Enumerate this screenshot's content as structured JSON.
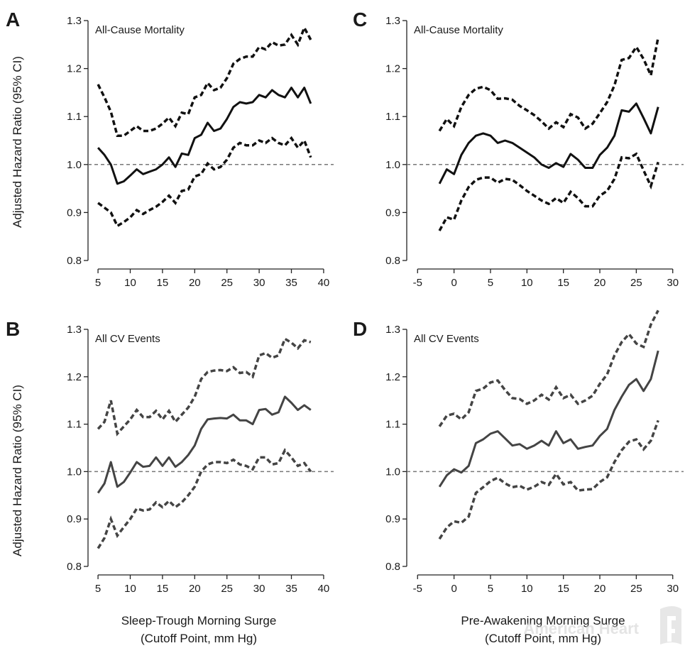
{
  "figure": {
    "ylabel": "Adjusted Hazard Ratio (95% CI)",
    "xlabel_left_line1": "Sleep-Trough Morning Surge",
    "xlabel_left_line2": "(Cutoff Point, mm Hg)",
    "xlabel_right_line1": "Pre-Awakening Morning Surge",
    "xlabel_right_line2": "(Cutoff Point, mm Hg)",
    "watermark": "American Heart"
  },
  "colors": {
    "panel_AC_line": "#111111",
    "panel_BD_line": "#444444",
    "reference_line": "#777777",
    "axis": "#222222"
  },
  "chart_data": [
    {
      "panel": "A",
      "type": "line",
      "title": "All-Cause Mortality",
      "xlabel": "",
      "ylabel": "Adjusted Hazard Ratio (95% CI)",
      "xlim": [
        4,
        41
      ],
      "ylim": [
        0.8,
        1.3
      ],
      "xticks": [
        5,
        10,
        15,
        20,
        25,
        30,
        35,
        40
      ],
      "yticks": [
        0.8,
        0.9,
        1.0,
        1.1,
        1.2,
        1.3
      ],
      "reference_y": 1.0,
      "x": [
        5,
        6,
        7,
        8,
        9,
        10,
        11,
        12,
        13,
        14,
        15,
        16,
        17,
        18,
        19,
        20,
        21,
        22,
        23,
        24,
        25,
        26,
        27,
        28,
        29,
        30,
        31,
        32,
        33,
        34,
        35,
        36,
        37,
        38
      ],
      "series": [
        {
          "role": "estimate",
          "values": [
            1.035,
            1.02,
            1.0,
            0.96,
            0.965,
            0.977,
            0.99,
            0.98,
            0.985,
            0.99,
            1.0,
            1.015,
            0.995,
            1.023,
            1.02,
            1.055,
            1.062,
            1.087,
            1.07,
            1.075,
            1.095,
            1.12,
            1.13,
            1.127,
            1.13,
            1.145,
            1.14,
            1.155,
            1.145,
            1.14,
            1.16,
            1.14,
            1.16,
            1.127
          ]
        },
        {
          "role": "upper_ci",
          "values": [
            1.167,
            1.14,
            1.11,
            1.06,
            1.06,
            1.07,
            1.08,
            1.07,
            1.07,
            1.075,
            1.085,
            1.098,
            1.08,
            1.108,
            1.105,
            1.14,
            1.145,
            1.17,
            1.155,
            1.16,
            1.18,
            1.21,
            1.22,
            1.225,
            1.225,
            1.245,
            1.24,
            1.255,
            1.248,
            1.25,
            1.27,
            1.25,
            1.285,
            1.26
          ]
        },
        {
          "role": "lower_ci",
          "values": [
            0.92,
            0.91,
            0.9,
            0.872,
            0.88,
            0.89,
            0.905,
            0.897,
            0.905,
            0.912,
            0.922,
            0.935,
            0.92,
            0.945,
            0.948,
            0.975,
            0.98,
            1.002,
            0.99,
            0.995,
            1.01,
            1.035,
            1.045,
            1.04,
            1.04,
            1.05,
            1.045,
            1.055,
            1.045,
            1.04,
            1.055,
            1.035,
            1.05,
            1.015
          ]
        }
      ]
    },
    {
      "panel": "B",
      "type": "line",
      "title": "All CV Events",
      "xlabel": "Sleep-Trough Morning Surge (Cutoff Point, mm Hg)",
      "ylabel": "Adjusted Hazard Ratio (95% CI)",
      "xlim": [
        4,
        41
      ],
      "ylim": [
        0.8,
        1.3
      ],
      "xticks": [
        5,
        10,
        15,
        20,
        25,
        30,
        35,
        40
      ],
      "yticks": [
        0.8,
        0.9,
        1.0,
        1.1,
        1.2,
        1.3
      ],
      "reference_y": 1.0,
      "x": [
        5,
        6,
        7,
        8,
        9,
        10,
        11,
        12,
        13,
        14,
        15,
        16,
        17,
        18,
        19,
        20,
        21,
        22,
        23,
        24,
        25,
        26,
        27,
        28,
        29,
        30,
        31,
        32,
        33,
        34,
        35,
        36,
        37,
        38
      ],
      "series": [
        {
          "role": "estimate",
          "values": [
            0.955,
            0.975,
            1.02,
            0.968,
            0.978,
            0.998,
            1.02,
            1.01,
            1.012,
            1.03,
            1.012,
            1.03,
            1.01,
            1.02,
            1.035,
            1.055,
            1.09,
            1.11,
            1.112,
            1.113,
            1.112,
            1.12,
            1.108,
            1.108,
            1.1,
            1.13,
            1.132,
            1.12,
            1.125,
            1.158,
            1.145,
            1.13,
            1.14,
            1.13
          ]
        },
        {
          "role": "upper_ci",
          "values": [
            1.09,
            1.105,
            1.15,
            1.08,
            1.095,
            1.11,
            1.13,
            1.115,
            1.115,
            1.128,
            1.11,
            1.128,
            1.105,
            1.12,
            1.135,
            1.158,
            1.195,
            1.21,
            1.213,
            1.214,
            1.212,
            1.22,
            1.208,
            1.21,
            1.2,
            1.245,
            1.25,
            1.24,
            1.245,
            1.28,
            1.272,
            1.26,
            1.277,
            1.273
          ]
        },
        {
          "role": "lower_ci",
          "values": [
            0.838,
            0.86,
            0.9,
            0.865,
            0.883,
            0.9,
            0.922,
            0.918,
            0.92,
            0.935,
            0.925,
            0.938,
            0.925,
            0.935,
            0.95,
            0.968,
            1.0,
            1.015,
            1.02,
            1.02,
            1.018,
            1.025,
            1.015,
            1.012,
            1.005,
            1.03,
            1.03,
            1.015,
            1.018,
            1.045,
            1.03,
            1.012,
            1.018,
            1.0
          ]
        }
      ]
    },
    {
      "panel": "C",
      "type": "line",
      "title": "All-Cause Mortality",
      "xlabel": "",
      "ylabel": "",
      "xlim": [
        -6,
        31
      ],
      "ylim": [
        0.8,
        1.3
      ],
      "xticks": [
        -5,
        0,
        5,
        10,
        15,
        20,
        25,
        30
      ],
      "yticks": [
        0.8,
        0.9,
        1.0,
        1.1,
        1.2,
        1.3
      ],
      "reference_y": 1.0,
      "x": [
        -2,
        -1,
        0,
        1,
        2,
        3,
        4,
        5,
        6,
        7,
        8,
        9,
        10,
        11,
        12,
        13,
        14,
        15,
        16,
        17,
        18,
        19,
        20,
        21,
        22,
        23,
        24,
        25,
        26,
        27,
        28
      ],
      "series": [
        {
          "role": "estimate",
          "values": [
            0.96,
            0.99,
            0.98,
            1.02,
            1.045,
            1.06,
            1.065,
            1.06,
            1.045,
            1.05,
            1.045,
            1.035,
            1.025,
            1.015,
            1.0,
            0.993,
            1.003,
            0.995,
            1.022,
            1.01,
            0.993,
            0.993,
            1.02,
            1.035,
            1.06,
            1.113,
            1.11,
            1.127,
            1.097,
            1.065,
            1.12
          ]
        },
        {
          "role": "upper_ci",
          "values": [
            1.07,
            1.095,
            1.08,
            1.12,
            1.145,
            1.158,
            1.162,
            1.155,
            1.137,
            1.138,
            1.135,
            1.122,
            1.113,
            1.103,
            1.09,
            1.075,
            1.088,
            1.078,
            1.105,
            1.098,
            1.075,
            1.085,
            1.107,
            1.13,
            1.165,
            1.218,
            1.222,
            1.245,
            1.22,
            1.186,
            1.265
          ]
        },
        {
          "role": "lower_ci",
          "values": [
            0.862,
            0.89,
            0.885,
            0.925,
            0.953,
            0.968,
            0.973,
            0.973,
            0.962,
            0.97,
            0.968,
            0.957,
            0.945,
            0.935,
            0.925,
            0.918,
            0.93,
            0.92,
            0.943,
            0.93,
            0.913,
            0.913,
            0.935,
            0.945,
            0.97,
            1.015,
            1.013,
            1.022,
            0.988,
            0.955,
            1.005
          ]
        }
      ]
    },
    {
      "panel": "D",
      "type": "line",
      "title": "All CV Events",
      "xlabel": "Pre-Awakening Morning Surge (Cutoff Point, mm Hg)",
      "ylabel": "",
      "xlim": [
        -6,
        31
      ],
      "ylim": [
        0.8,
        1.3
      ],
      "xticks": [
        -5,
        0,
        5,
        10,
        15,
        20,
        25,
        30
      ],
      "yticks": [
        0.8,
        0.9,
        1.0,
        1.1,
        1.2,
        1.3
      ],
      "reference_y": 1.0,
      "x": [
        -2,
        -1,
        0,
        1,
        2,
        3,
        4,
        5,
        6,
        7,
        8,
        9,
        10,
        11,
        12,
        13,
        14,
        15,
        16,
        17,
        18,
        19,
        20,
        21,
        22,
        23,
        24,
        25,
        26,
        27,
        28
      ],
      "series": [
        {
          "role": "estimate",
          "values": [
            0.968,
            0.992,
            1.005,
            0.998,
            1.012,
            1.06,
            1.068,
            1.08,
            1.085,
            1.07,
            1.055,
            1.058,
            1.048,
            1.055,
            1.065,
            1.055,
            1.085,
            1.06,
            1.068,
            1.048,
            1.052,
            1.055,
            1.075,
            1.09,
            1.13,
            1.158,
            1.183,
            1.195,
            1.17,
            1.195,
            1.255
          ]
        },
        {
          "role": "upper_ci",
          "values": [
            1.095,
            1.118,
            1.122,
            1.11,
            1.125,
            1.17,
            1.175,
            1.188,
            1.192,
            1.172,
            1.155,
            1.153,
            1.143,
            1.15,
            1.162,
            1.152,
            1.178,
            1.155,
            1.162,
            1.143,
            1.15,
            1.16,
            1.185,
            1.205,
            1.245,
            1.273,
            1.29,
            1.27,
            1.263,
            1.31,
            1.34
          ]
        },
        {
          "role": "lower_ci",
          "values": [
            0.858,
            0.882,
            0.895,
            0.892,
            0.905,
            0.955,
            0.967,
            0.98,
            0.987,
            0.975,
            0.967,
            0.97,
            0.962,
            0.968,
            0.978,
            0.972,
            0.995,
            0.973,
            0.978,
            0.96,
            0.962,
            0.963,
            0.978,
            0.988,
            1.02,
            1.045,
            1.063,
            1.068,
            1.047,
            1.065,
            1.108
          ]
        }
      ]
    }
  ]
}
